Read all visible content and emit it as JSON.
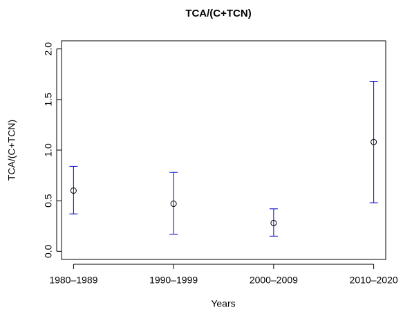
{
  "chart_data": {
    "type": "errorbar",
    "title": "TCA/(C+TCN)",
    "x_label": "Years",
    "y_label": "TCA/(C+TCN)",
    "categories": [
      "1980–1989",
      "1990–1999",
      "2000–2009",
      "2010–2020"
    ],
    "values": [
      0.6,
      0.47,
      0.28,
      1.08
    ],
    "lower": [
      0.37,
      0.17,
      0.15,
      0.48
    ],
    "upper": [
      0.84,
      0.78,
      0.42,
      1.68
    ],
    "point_color": "#000000",
    "error_color": "#0000cc",
    "ylim": [
      -0.08,
      2.08
    ],
    "yticks": [
      {
        "value": 0,
        "label": "0.0"
      },
      {
        "value": 0.5,
        "label": "0.5"
      },
      {
        "value": 1,
        "label": "1.0"
      },
      {
        "value": 1.5,
        "label": "1.5"
      },
      {
        "value": 2,
        "label": "2.0"
      }
    ]
  }
}
